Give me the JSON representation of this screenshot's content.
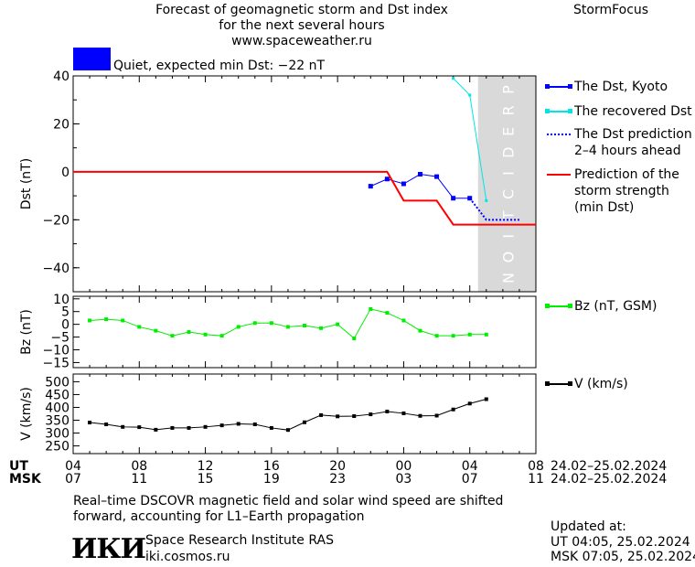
{
  "header": {
    "title_line1": "Forecast of geomagnetic storm and Dst index",
    "title_line2": "for the next several hours",
    "url": "www.spaceweather.ru",
    "brand": "StormFocus"
  },
  "status": {
    "color": "#0000ff",
    "text": "Quiet, expected min Dst: −22 nT"
  },
  "legend": {
    "dst_kyoto": "The Dst, Kyoto",
    "recovered": "The recovered Dst",
    "prediction_line1": "The Dst prediction",
    "prediction_line2": "2–4 hours ahead",
    "strength_line1": "Prediction of the",
    "strength_line2": "storm strength",
    "strength_line3": "(min Dst)",
    "bz": "Bz (nT, GSM)",
    "v": "V (km/s)"
  },
  "prediction_label": "PREDICTION",
  "time_axis": {
    "ut_label": "UT",
    "msk_label": "MSK",
    "ut_ticks": [
      "04",
      "08",
      "12",
      "16",
      "20",
      "00",
      "04",
      "08"
    ],
    "msk_ticks": [
      "07",
      "11",
      "15",
      "19",
      "23",
      "03",
      "07",
      "11"
    ],
    "ut_range": "24.02–25.02.2024",
    "msk_range": "24.02–25.02.2024"
  },
  "footer": {
    "note_line1": "Real–time DSCOVR magnetic field and solar wind speed are shifted",
    "note_line2": "forward, accounting for L1–Earth propagation",
    "logo": "ИКИ",
    "institute": "Space Research Institute RAS",
    "site": "iki.cosmos.ru",
    "updated_label": "Updated at:",
    "updated_ut": "UT   04:05, 25.02.2024",
    "updated_msk": "MSK 07:05, 25.02.2024"
  },
  "colors": {
    "dst": "#0000ff",
    "recovered": "#00e5e5",
    "strength": "#ff0000",
    "bz": "#00ee00",
    "v": "#000000",
    "prediction_band": "#d9d9d9"
  },
  "chart_data": [
    {
      "type": "line",
      "ylabel": "Dst (nT)",
      "ylim": [
        -50,
        40
      ],
      "yticks": [
        40,
        20,
        0,
        -20,
        -40
      ],
      "xlim": [
        0,
        28
      ],
      "prediction_start": 24.5,
      "series": [
        {
          "name": "The Dst, Kyoto",
          "x": [
            18,
            19,
            20,
            21,
            22,
            23,
            24
          ],
          "values": [
            -6,
            -3,
            -5,
            -1,
            -2,
            -11,
            -11
          ]
        },
        {
          "name": "The recovered Dst",
          "x": [
            23,
            24,
            25
          ],
          "values": [
            39,
            32,
            -12
          ]
        },
        {
          "name": "The Dst prediction 2–4 hours ahead",
          "x": [
            24,
            25,
            26,
            27
          ],
          "values": [
            -11,
            -20,
            -20,
            -20
          ]
        },
        {
          "name": "Prediction of the storm strength (min Dst)",
          "x": [
            0,
            19,
            20,
            22,
            23,
            28
          ],
          "values": [
            0,
            0,
            -12,
            -12,
            -22,
            -22
          ]
        }
      ]
    },
    {
      "type": "line",
      "ylabel": "Bz (nT)",
      "ylim": [
        -17,
        11
      ],
      "yticks": [
        10,
        5,
        0,
        -5,
        -10,
        -15
      ],
      "xlim": [
        0,
        28
      ],
      "series": [
        {
          "name": "Bz (nT, GSM)",
          "x": [
            1,
            2,
            3,
            4,
            5,
            6,
            7,
            8,
            9,
            10,
            11,
            12,
            13,
            14,
            15,
            16,
            17,
            18,
            19,
            20,
            21,
            22,
            23,
            24,
            25
          ],
          "values": [
            1.5,
            2,
            1.5,
            -1,
            -2.5,
            -4.5,
            -3,
            -4,
            -4.5,
            -1,
            0.5,
            0.5,
            -1,
            -0.5,
            -1.5,
            0,
            -5.5,
            6,
            4.5,
            1.5,
            -2.5,
            -4.5,
            -4.5,
            -4,
            -4
          ]
        }
      ]
    },
    {
      "type": "line",
      "ylabel": "V (km/s)",
      "ylim": [
        220,
        530
      ],
      "yticks": [
        500,
        450,
        400,
        350,
        300,
        250
      ],
      "xlim": [
        0,
        28
      ],
      "series": [
        {
          "name": "V (km/s)",
          "x": [
            1,
            2,
            3,
            4,
            5,
            6,
            7,
            8,
            9,
            10,
            11,
            12,
            13,
            14,
            15,
            16,
            17,
            18,
            19,
            20,
            21,
            22,
            23,
            24,
            25
          ],
          "values": [
            341,
            334,
            324,
            323,
            313,
            320,
            320,
            324,
            330,
            336,
            334,
            320,
            312,
            342,
            370,
            365,
            366,
            373,
            384,
            377,
            367,
            368,
            392,
            415,
            432
          ]
        }
      ]
    }
  ]
}
